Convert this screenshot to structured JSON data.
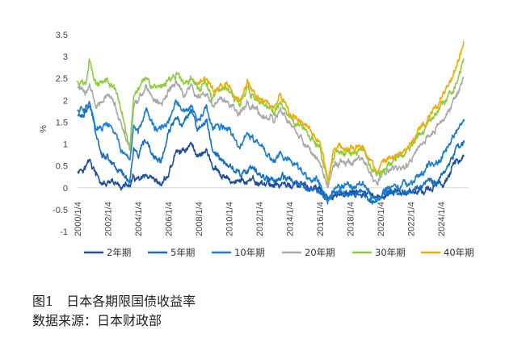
{
  "chart_data": {
    "type": "line",
    "ylabel": "%",
    "ylim": [
      -1,
      3.5
    ],
    "yticks": [
      "3.5",
      "3",
      "2.5",
      "2",
      "1.5",
      "1",
      "0.5",
      "0",
      "-0.5",
      "-1"
    ],
    "x_tick_labels": [
      "2000/1/4",
      "2002/1/4",
      "2004/1/4",
      "2006/1/4",
      "2008/1/4",
      "2010/1/4",
      "2012/1/4",
      "2014/1/4",
      "2016/1/4",
      "2018/1/4",
      "2020/1/4",
      "2022/1/4",
      "2024/1/4"
    ],
    "xlim": [
      2000.0,
      2025.8
    ],
    "legend_position": "bottom",
    "grid": false,
    "series": [
      {
        "name": "2年期",
        "color": "#1f4e9c",
        "points": [
          [
            2000.0,
            0.42
          ],
          [
            2000.5,
            0.48
          ],
          [
            2000.8,
            0.62
          ],
          [
            2001.2,
            0.3
          ],
          [
            2001.6,
            0.08
          ],
          [
            2002.5,
            0.06
          ],
          [
            2003.0,
            0.04
          ],
          [
            2003.45,
            0.04
          ],
          [
            2003.7,
            0.22
          ],
          [
            2004.0,
            0.15
          ],
          [
            2004.5,
            0.22
          ],
          [
            2005.0,
            0.1
          ],
          [
            2005.5,
            0.06
          ],
          [
            2006.0,
            0.3
          ],
          [
            2006.5,
            0.8
          ],
          [
            2007.0,
            0.85
          ],
          [
            2007.5,
            1.0
          ],
          [
            2007.9,
            0.75
          ],
          [
            2008.5,
            0.85
          ],
          [
            2008.9,
            0.5
          ],
          [
            2009.3,
            0.3
          ],
          [
            2010.0,
            0.15
          ],
          [
            2011.0,
            0.15
          ],
          [
            2012.0,
            0.1
          ],
          [
            2013.0,
            0.08
          ],
          [
            2014.0,
            0.06
          ],
          [
            2015.0,
            0.02
          ],
          [
            2016.0,
            -0.05
          ],
          [
            2016.5,
            -0.3
          ],
          [
            2017.0,
            -0.15
          ],
          [
            2018.0,
            -0.13
          ],
          [
            2019.0,
            -0.15
          ],
          [
            2019.7,
            -0.3
          ],
          [
            2020.5,
            -0.13
          ],
          [
            2021.5,
            -0.12
          ],
          [
            2022.5,
            -0.05
          ],
          [
            2023.0,
            -0.03
          ],
          [
            2023.5,
            0.0
          ],
          [
            2024.0,
            0.08
          ],
          [
            2024.5,
            0.3
          ],
          [
            2025.0,
            0.6
          ],
          [
            2025.5,
            0.78
          ]
        ]
      },
      {
        "name": "5年期",
        "color": "#0f6ec7",
        "points": [
          [
            2000.0,
            1.65
          ],
          [
            2000.4,
            1.7
          ],
          [
            2000.8,
            1.85
          ],
          [
            2001.2,
            1.3
          ],
          [
            2001.6,
            0.8
          ],
          [
            2002.0,
            0.7
          ],
          [
            2002.5,
            0.5
          ],
          [
            2003.0,
            0.3
          ],
          [
            2003.45,
            0.18
          ],
          [
            2003.7,
            0.9
          ],
          [
            2004.0,
            0.7
          ],
          [
            2004.5,
            1.05
          ],
          [
            2005.0,
            0.7
          ],
          [
            2005.5,
            0.6
          ],
          [
            2006.0,
            1.2
          ],
          [
            2006.5,
            1.65
          ],
          [
            2007.0,
            1.45
          ],
          [
            2007.5,
            1.85
          ],
          [
            2007.9,
            1.35
          ],
          [
            2008.5,
            1.5
          ],
          [
            2008.9,
            0.9
          ],
          [
            2009.5,
            0.6
          ],
          [
            2010.0,
            0.5
          ],
          [
            2010.7,
            0.35
          ],
          [
            2011.5,
            0.4
          ],
          [
            2012.0,
            0.3
          ],
          [
            2013.0,
            0.2
          ],
          [
            2014.0,
            0.18
          ],
          [
            2015.0,
            0.05
          ],
          [
            2016.0,
            -0.1
          ],
          [
            2016.5,
            -0.3
          ],
          [
            2017.0,
            -0.12
          ],
          [
            2018.0,
            -0.1
          ],
          [
            2019.0,
            -0.15
          ],
          [
            2019.7,
            -0.28
          ],
          [
            2020.5,
            -0.1
          ],
          [
            2021.5,
            -0.1
          ],
          [
            2022.5,
            0.0
          ],
          [
            2023.0,
            0.15
          ],
          [
            2023.5,
            0.1
          ],
          [
            2024.0,
            0.3
          ],
          [
            2024.5,
            0.55
          ],
          [
            2025.0,
            0.9
          ],
          [
            2025.5,
            1.05
          ]
        ]
      },
      {
        "name": "10年期",
        "color": "#1a7fd4",
        "points": [
          [
            2000.0,
            1.75
          ],
          [
            2000.4,
            1.85
          ],
          [
            2000.8,
            1.95
          ],
          [
            2001.2,
            1.3
          ],
          [
            2001.6,
            1.35
          ],
          [
            2002.0,
            1.45
          ],
          [
            2002.5,
            1.2
          ],
          [
            2003.0,
            0.8
          ],
          [
            2003.45,
            0.45
          ],
          [
            2003.7,
            1.4
          ],
          [
            2004.0,
            1.3
          ],
          [
            2004.5,
            1.85
          ],
          [
            2005.0,
            1.4
          ],
          [
            2005.5,
            1.3
          ],
          [
            2006.0,
            1.5
          ],
          [
            2006.5,
            1.95
          ],
          [
            2007.0,
            1.7
          ],
          [
            2007.5,
            1.85
          ],
          [
            2007.9,
            1.5
          ],
          [
            2008.5,
            1.8
          ],
          [
            2008.9,
            1.35
          ],
          [
            2009.5,
            1.4
          ],
          [
            2010.0,
            1.3
          ],
          [
            2010.7,
            0.9
          ],
          [
            2011.2,
            1.25
          ],
          [
            2012.0,
            0.95
          ],
          [
            2013.0,
            0.6
          ],
          [
            2013.4,
            0.85
          ],
          [
            2014.0,
            0.6
          ],
          [
            2015.0,
            0.3
          ],
          [
            2016.0,
            0.1
          ],
          [
            2016.5,
            -0.28
          ],
          [
            2017.0,
            0.05
          ],
          [
            2018.0,
            0.05
          ],
          [
            2018.8,
            0.1
          ],
          [
            2019.7,
            -0.28
          ],
          [
            2020.5,
            0.0
          ],
          [
            2021.5,
            0.05
          ],
          [
            2022.5,
            0.25
          ],
          [
            2023.0,
            0.45
          ],
          [
            2023.5,
            0.55
          ],
          [
            2024.0,
            0.7
          ],
          [
            2024.5,
            1.0
          ],
          [
            2025.0,
            1.3
          ],
          [
            2025.5,
            1.55
          ]
        ]
      },
      {
        "name": "20年期",
        "color": "#a9a9a9",
        "points": [
          [
            2000.0,
            2.3
          ],
          [
            2000.5,
            2.2
          ],
          [
            2000.8,
            2.35
          ],
          [
            2001.2,
            1.9
          ],
          [
            2001.6,
            2.05
          ],
          [
            2002.0,
            2.1
          ],
          [
            2002.5,
            1.85
          ],
          [
            2003.0,
            1.3
          ],
          [
            2003.45,
            0.9
          ],
          [
            2003.7,
            1.9
          ],
          [
            2004.0,
            1.95
          ],
          [
            2004.5,
            2.35
          ],
          [
            2005.0,
            2.0
          ],
          [
            2005.5,
            1.9
          ],
          [
            2006.0,
            2.2
          ],
          [
            2006.5,
            2.4
          ],
          [
            2007.0,
            2.15
          ],
          [
            2007.5,
            2.3
          ],
          [
            2007.9,
            2.05
          ],
          [
            2008.5,
            2.2
          ],
          [
            2008.9,
            1.85
          ],
          [
            2009.5,
            2.05
          ],
          [
            2010.0,
            1.9
          ],
          [
            2010.7,
            1.65
          ],
          [
            2011.2,
            2.0
          ],
          [
            2012.0,
            1.7
          ],
          [
            2013.0,
            1.5
          ],
          [
            2013.4,
            1.8
          ],
          [
            2014.0,
            1.4
          ],
          [
            2015.0,
            1.0
          ],
          [
            2016.0,
            0.6
          ],
          [
            2016.5,
            0.05
          ],
          [
            2017.0,
            0.55
          ],
          [
            2018.0,
            0.55
          ],
          [
            2018.8,
            0.6
          ],
          [
            2019.7,
            0.1
          ],
          [
            2020.5,
            0.4
          ],
          [
            2021.5,
            0.45
          ],
          [
            2022.5,
            0.9
          ],
          [
            2023.0,
            1.1
          ],
          [
            2023.5,
            1.3
          ],
          [
            2024.0,
            1.5
          ],
          [
            2024.5,
            1.75
          ],
          [
            2025.0,
            2.1
          ],
          [
            2025.5,
            2.55
          ]
        ]
      },
      {
        "name": "30年期",
        "color": "#8ccd3c",
        "points": [
          [
            2000.0,
            2.45
          ],
          [
            2000.5,
            2.35
          ],
          [
            2000.8,
            2.9
          ],
          [
            2001.2,
            2.35
          ],
          [
            2001.6,
            2.45
          ],
          [
            2002.0,
            2.5
          ],
          [
            2002.5,
            2.25
          ],
          [
            2003.0,
            1.6
          ],
          [
            2003.45,
            0.95
          ],
          [
            2003.7,
            2.1
          ],
          [
            2004.0,
            2.3
          ],
          [
            2004.5,
            2.6
          ],
          [
            2005.0,
            2.3
          ],
          [
            2005.5,
            2.2
          ],
          [
            2006.0,
            2.45
          ],
          [
            2006.5,
            2.6
          ],
          [
            2007.0,
            2.4
          ],
          [
            2007.5,
            2.5
          ],
          [
            2007.9,
            2.3
          ],
          [
            2008.5,
            2.4
          ],
          [
            2008.9,
            2.05
          ],
          [
            2009.5,
            2.3
          ],
          [
            2010.0,
            2.2
          ],
          [
            2010.7,
            1.9
          ],
          [
            2011.2,
            2.25
          ],
          [
            2012.0,
            1.95
          ],
          [
            2013.0,
            1.7
          ],
          [
            2013.4,
            1.95
          ],
          [
            2014.0,
            1.6
          ],
          [
            2015.0,
            1.35
          ],
          [
            2016.0,
            0.9
          ],
          [
            2016.5,
            0.1
          ],
          [
            2017.0,
            0.8
          ],
          [
            2018.0,
            0.8
          ],
          [
            2018.8,
            0.85
          ],
          [
            2019.7,
            0.25
          ],
          [
            2020.5,
            0.6
          ],
          [
            2021.5,
            0.7
          ],
          [
            2022.5,
            1.2
          ],
          [
            2023.0,
            1.4
          ],
          [
            2023.5,
            1.6
          ],
          [
            2024.0,
            1.9
          ],
          [
            2024.5,
            2.1
          ],
          [
            2025.0,
            2.45
          ],
          [
            2025.5,
            3.0
          ]
        ]
      },
      {
        "name": "40年期",
        "color": "#f2ac00",
        "points": [
          [
            2007.9,
            2.35
          ],
          [
            2008.5,
            2.5
          ],
          [
            2008.9,
            2.2
          ],
          [
            2009.5,
            2.35
          ],
          [
            2010.0,
            2.3
          ],
          [
            2010.7,
            2.0
          ],
          [
            2011.2,
            2.35
          ],
          [
            2012.0,
            2.05
          ],
          [
            2013.0,
            1.8
          ],
          [
            2013.4,
            2.1
          ],
          [
            2014.0,
            1.7
          ],
          [
            2015.0,
            1.45
          ],
          [
            2016.0,
            1.05
          ],
          [
            2016.5,
            0.15
          ],
          [
            2017.0,
            0.95
          ],
          [
            2018.0,
            0.9
          ],
          [
            2018.8,
            0.95
          ],
          [
            2019.7,
            0.35
          ],
          [
            2020.5,
            0.7
          ],
          [
            2021.5,
            0.75
          ],
          [
            2022.5,
            1.3
          ],
          [
            2023.0,
            1.5
          ],
          [
            2023.5,
            1.75
          ],
          [
            2024.0,
            2.05
          ],
          [
            2024.5,
            2.3
          ],
          [
            2025.0,
            2.75
          ],
          [
            2025.5,
            3.35
          ]
        ]
      }
    ]
  },
  "caption": {
    "figure": "图1　日本各期限国债收益率",
    "source": "数据来源：日本财政部"
  }
}
